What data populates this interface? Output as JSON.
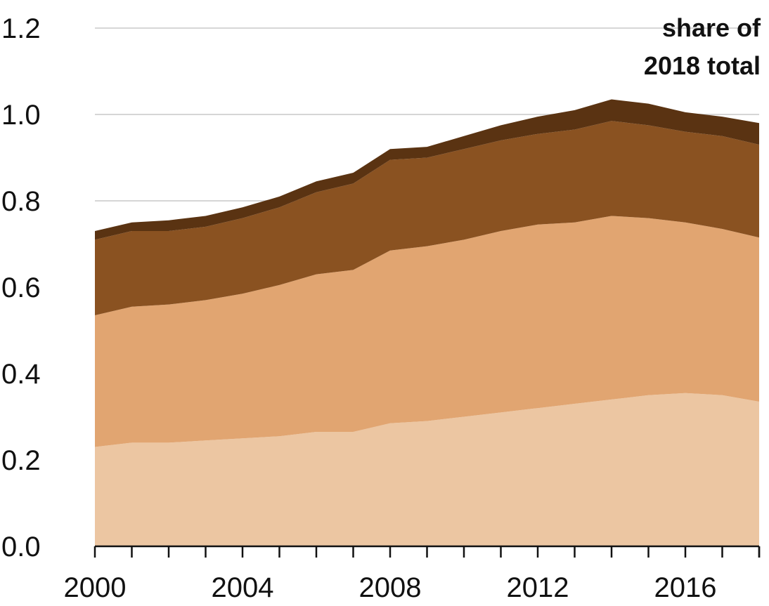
{
  "chart_data": {
    "type": "area",
    "stacked": true,
    "annotation": "share of 2018 total",
    "annotation_lines": [
      "share of",
      "2018 total"
    ],
    "x": [
      2000,
      2001,
      2002,
      2003,
      2004,
      2005,
      2006,
      2007,
      2008,
      2009,
      2010,
      2011,
      2012,
      2013,
      2014,
      2015,
      2016,
      2017,
      2018
    ],
    "xticks": [
      2000,
      2004,
      2008,
      2012,
      2016
    ],
    "xlim": [
      2000,
      2018
    ],
    "ylim": [
      0,
      1.2
    ],
    "yticks": [
      0.0,
      0.2,
      0.4,
      0.6,
      0.8,
      1.0,
      1.2
    ],
    "ytick_labels": [
      "0.0",
      "0.2",
      "0.4",
      "0.6",
      "0.8",
      "1.0",
      "1.2"
    ],
    "grid": true,
    "series": [
      {
        "color": "#ecc6a2",
        "values": [
          0.23,
          0.24,
          0.24,
          0.245,
          0.25,
          0.255,
          0.265,
          0.265,
          0.285,
          0.29,
          0.3,
          0.31,
          0.32,
          0.33,
          0.34,
          0.35,
          0.355,
          0.35,
          0.335
        ]
      },
      {
        "color": "#e1a571",
        "values": [
          0.305,
          0.315,
          0.32,
          0.325,
          0.335,
          0.35,
          0.365,
          0.375,
          0.4,
          0.405,
          0.41,
          0.42,
          0.425,
          0.42,
          0.425,
          0.41,
          0.395,
          0.385,
          0.38
        ]
      },
      {
        "color": "#8a5221",
        "values": [
          0.175,
          0.175,
          0.17,
          0.17,
          0.175,
          0.18,
          0.19,
          0.2,
          0.21,
          0.205,
          0.21,
          0.21,
          0.21,
          0.215,
          0.22,
          0.215,
          0.21,
          0.215,
          0.215
        ]
      },
      {
        "color": "#5a3312",
        "values": [
          0.02,
          0.02,
          0.025,
          0.025,
          0.025,
          0.025,
          0.025,
          0.025,
          0.025,
          0.025,
          0.03,
          0.035,
          0.04,
          0.045,
          0.05,
          0.05,
          0.045,
          0.045,
          0.05
        ]
      }
    ]
  }
}
